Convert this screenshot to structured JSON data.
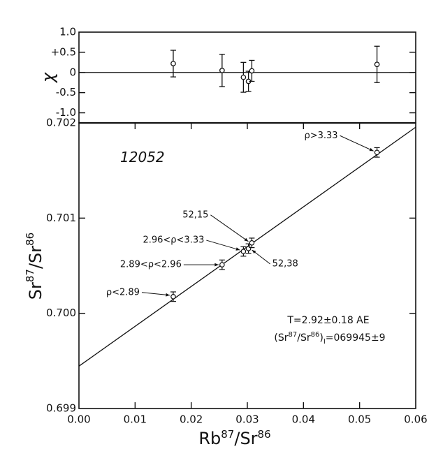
{
  "chart_data": [
    {
      "type": "scatter",
      "panel": "residual",
      "ylabel": "χ",
      "ylim": [
        -1.25,
        1.0
      ],
      "yticks": [
        {
          "value": 1.0,
          "label": "1.0"
        },
        {
          "value": 0.5,
          "label": "+0.5"
        },
        {
          "value": 0.0,
          "label": "0"
        },
        {
          "value": -0.5,
          "label": "-0.5"
        },
        {
          "value": -1.0,
          "label": "-1.0"
        }
      ],
      "points": [
        {
          "x": 0.0168,
          "y": 0.22,
          "yerr_plus": 0.33,
          "yerr_minus": 0.33
        },
        {
          "x": 0.0255,
          "y": 0.05,
          "yerr_plus": 0.4,
          "yerr_minus": 0.4
        },
        {
          "x": 0.0293,
          "y": -0.12,
          "yerr_plus": 0.37,
          "yerr_minus": 0.37
        },
        {
          "x": 0.0302,
          "y": -0.22,
          "yerr_plus": 0.25,
          "yerr_minus": 0.25
        },
        {
          "x": 0.0308,
          "y": 0.04,
          "yerr_plus": 0.26,
          "yerr_minus": 0.26
        },
        {
          "x": 0.0531,
          "y": 0.2,
          "yerr_plus": 0.45,
          "yerr_minus": 0.45
        }
      ]
    },
    {
      "type": "scatter",
      "panel": "isochron",
      "xlabel_main": "Rb",
      "xlabel_sup1": "87",
      "xlabel_mid": "/Sr",
      "xlabel_sup2": "86",
      "ylabel_main": "Sr",
      "ylabel_sup1": "87",
      "ylabel_mid": "/Sr",
      "ylabel_sup2": "86",
      "xlim": [
        0.0,
        0.06
      ],
      "ylim": [
        0.699,
        0.702
      ],
      "xticks": [
        {
          "value": 0.0,
          "label": "0.00"
        },
        {
          "value": 0.01,
          "label": "0.01"
        },
        {
          "value": 0.02,
          "label": "0.02"
        },
        {
          "value": 0.03,
          "label": "0.03"
        },
        {
          "value": 0.04,
          "label": "0.04"
        },
        {
          "value": 0.05,
          "label": "0.05"
        },
        {
          "value": 0.06,
          "label": "0.06"
        }
      ],
      "yticks": [
        {
          "value": 0.699,
          "label": "0.699"
        },
        {
          "value": 0.7,
          "label": "0.700"
        },
        {
          "value": 0.701,
          "label": "0.701"
        },
        {
          "value": 0.702,
          "label": "0.702"
        }
      ],
      "fit_line": {
        "x": [
          0.0,
          0.06
        ],
        "y": [
          0.699445,
          0.701955
        ]
      },
      "points": [
        {
          "x": 0.0168,
          "y": 0.700175,
          "yerr": 5e-05
        },
        {
          "x": 0.0255,
          "y": 0.70051,
          "yerr": 5e-05
        },
        {
          "x": 0.0293,
          "y": 0.70065,
          "yerr": 5e-05
        },
        {
          "x": 0.0302,
          "y": 0.70068,
          "yerr": 5e-05
        },
        {
          "x": 0.0308,
          "y": 0.70074,
          "yerr": 5e-05
        },
        {
          "x": 0.0531,
          "y": 0.70169,
          "yerr": 5e-05
        }
      ],
      "sample_label": "12052",
      "annotations": [
        {
          "text": "ρ<2.89"
        },
        {
          "text": "2.89<ρ<2.96"
        },
        {
          "text": "2.96<ρ<3.33"
        },
        {
          "text": "52,15"
        },
        {
          "text": "52,38"
        },
        {
          "text": "ρ>3.33"
        }
      ],
      "age_text": "T=2.92±0.18 AE",
      "initial_ratio": {
        "open": "(Sr",
        "sup1": "87",
        "mid": "/Sr",
        "sup2": "86",
        "close": ")",
        "sub": "I",
        "value": "=069945±9"
      }
    }
  ]
}
